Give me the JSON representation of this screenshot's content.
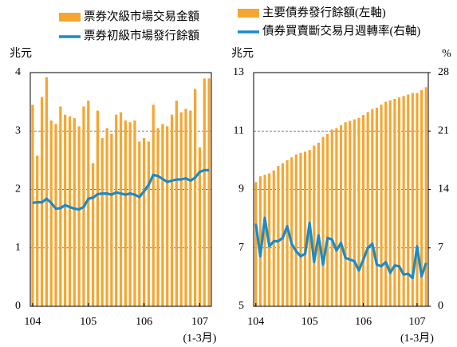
{
  "chart_data": [
    {
      "type": "combo",
      "unit_label": "兆元",
      "categories": [
        "104",
        null,
        null,
        null,
        null,
        null,
        null,
        null,
        null,
        null,
        null,
        null,
        "105",
        null,
        null,
        null,
        null,
        null,
        null,
        null,
        null,
        null,
        null,
        null,
        "106",
        null,
        null,
        null,
        null,
        null,
        null,
        null,
        null,
        null,
        null,
        null,
        "107",
        null,
        null
      ],
      "annotation": "(1-3月)",
      "ylim": [
        0,
        4
      ],
      "yticks": [
        0,
        1,
        2,
        3,
        4
      ],
      "grid": true,
      "series": [
        {
          "name": "票券次級市場交易金額",
          "type": "bar",
          "color": "#f5a631",
          "values": [
            3.45,
            2.58,
            3.58,
            3.92,
            3.18,
            3.12,
            3.42,
            3.28,
            3.25,
            3.22,
            3.08,
            3.42,
            3.52,
            2.45,
            3.35,
            2.88,
            3.05,
            2.95,
            3.28,
            3.32,
            3.18,
            3.15,
            3.18,
            2.82,
            2.88,
            2.82,
            3.45,
            3.05,
            3.12,
            3.08,
            3.28,
            3.52,
            3.32,
            3.38,
            3.35,
            3.72,
            2.72,
            3.9,
            3.9
          ]
        },
        {
          "name": "票券初級市場發行餘額",
          "type": "line",
          "color": "#1a8bc8",
          "values": [
            1.77,
            1.78,
            1.78,
            1.84,
            1.77,
            1.67,
            1.68,
            1.73,
            1.7,
            1.67,
            1.66,
            1.7,
            1.84,
            1.86,
            1.92,
            1.93,
            1.93,
            1.91,
            1.95,
            1.93,
            1.91,
            1.93,
            1.91,
            1.87,
            1.97,
            2.08,
            2.25,
            2.23,
            2.18,
            2.13,
            2.15,
            2.17,
            2.17,
            2.19,
            2.15,
            2.2,
            2.3,
            2.33,
            2.33
          ]
        }
      ]
    },
    {
      "type": "combo",
      "unit_label": "兆元",
      "y2_unit_label": "%",
      "categories": [
        "104",
        null,
        null,
        null,
        null,
        null,
        null,
        null,
        null,
        null,
        null,
        null,
        "105",
        null,
        null,
        null,
        null,
        null,
        null,
        null,
        null,
        null,
        null,
        null,
        "106",
        null,
        null,
        null,
        null,
        null,
        null,
        null,
        null,
        null,
        null,
        null,
        "107",
        null,
        null
      ],
      "annotation": "(1-3月)",
      "ylim": [
        5,
        13
      ],
      "yticks": [
        5,
        7,
        9,
        11,
        13
      ],
      "y2lim": [
        0,
        28
      ],
      "y2ticks": [
        0,
        7,
        14,
        21,
        28
      ],
      "grid": true,
      "series": [
        {
          "name": "主要債券發行餘額(左軸)",
          "type": "bar",
          "color": "#f5a631",
          "values": [
            9.25,
            9.45,
            9.5,
            9.55,
            9.65,
            9.8,
            9.9,
            10.0,
            10.1,
            10.2,
            10.25,
            10.3,
            10.35,
            10.5,
            10.6,
            10.8,
            10.9,
            11.05,
            11.1,
            11.2,
            11.3,
            11.35,
            11.4,
            11.45,
            11.55,
            11.65,
            11.75,
            11.8,
            11.9,
            12.0,
            12.05,
            12.1,
            12.15,
            12.2,
            12.25,
            12.3,
            12.3,
            12.4,
            12.5
          ]
        },
        {
          "name": "債券買賣斷交易月週轉率(右軸)",
          "type": "line",
          "axis": "y2",
          "color": "#1a8bc8",
          "values": [
            9.9,
            6.0,
            10.6,
            7.2,
            7.8,
            7.8,
            8.2,
            9.6,
            7.5,
            6.6,
            6.0,
            6.3,
            10.0,
            5.3,
            8.5,
            5.0,
            8.2,
            8.0,
            6.7,
            7.6,
            5.8,
            5.6,
            5.4,
            4.3,
            5.6,
            7.0,
            7.5,
            5.0,
            4.8,
            5.3,
            4.0,
            4.9,
            4.8,
            3.8,
            3.9,
            3.4,
            7.2,
            3.6,
            5.2
          ]
        }
      ]
    }
  ]
}
